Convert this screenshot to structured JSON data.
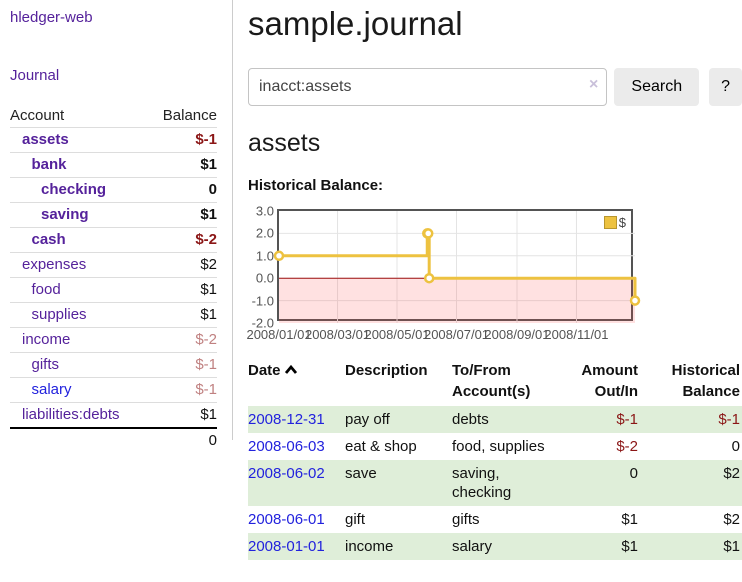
{
  "app": {
    "title": "hledger-web",
    "nav_journal": "Journal"
  },
  "header": {
    "title": "sample.journal"
  },
  "search": {
    "value": "inacct:assets",
    "clear_icon": "×",
    "button": "Search",
    "help_button": "?"
  },
  "account_page": {
    "heading": "assets",
    "chart_label": "Historical Balance:"
  },
  "colors": {
    "link_purple": "#55229B",
    "link_blue": "#2222DD",
    "negative_dark": "#8B1616",
    "negative_soft": "#C08181",
    "row_green": "#DFEED9",
    "chart_line": "#EDC240",
    "zero_line": "#A01212",
    "chart_border": "#545454"
  },
  "sidebar": {
    "table": {
      "col_account": "Account",
      "col_balance": "Balance",
      "rows": [
        {
          "name": "assets",
          "indent": 1,
          "bold": true,
          "balance": "$-1",
          "tone": "neg"
        },
        {
          "name": "bank",
          "indent": 2,
          "bold": true,
          "balance": "$1",
          "tone": ""
        },
        {
          "name": "checking",
          "indent": 3,
          "bold": true,
          "balance": "0",
          "tone": ""
        },
        {
          "name": "saving",
          "indent": 3,
          "bold": true,
          "balance": "$1",
          "tone": ""
        },
        {
          "name": "cash",
          "indent": 2,
          "bold": true,
          "balance": "$-2",
          "tone": "neg"
        },
        {
          "name": "expenses",
          "indent": 1,
          "bold": false,
          "balance": "$2",
          "tone": ""
        },
        {
          "name": "food",
          "indent": 2,
          "bold": false,
          "balance": "$1",
          "tone": ""
        },
        {
          "name": "supplies",
          "indent": 2,
          "bold": false,
          "balance": "$1",
          "tone": ""
        },
        {
          "name": "income",
          "indent": 1,
          "bold": false,
          "balance": "$-2",
          "tone": "negsoft"
        },
        {
          "name": "gifts",
          "indent": 2,
          "bold": false,
          "balance": "$-1",
          "tone": "negsoft"
        },
        {
          "name": "salary",
          "indent": 2,
          "bold": false,
          "balance": "$-1",
          "tone": "negsoft",
          "link_tone": "blue"
        },
        {
          "name": "liabilities:debts",
          "indent": 1,
          "bold": false,
          "balance": "$1",
          "tone": ""
        }
      ],
      "total": "0"
    }
  },
  "chart_data": {
    "type": "line",
    "style": "step",
    "title": "Historical Balance",
    "legend": [
      {
        "label": "$",
        "color": "#EDC240"
      }
    ],
    "legend_position": "top-right",
    "grid": true,
    "xlim": [
      "2008-01-01",
      "2008-12-31"
    ],
    "ylim": [
      -2,
      3
    ],
    "x_ticks": [
      "2008/01/01",
      "2008/03/01",
      "2008/05/01",
      "2008/07/01",
      "2008/09/01",
      "2008/11/01"
    ],
    "y_ticks": [
      3.0,
      2.0,
      1.0,
      0.0,
      -1.0,
      -2.0
    ],
    "series": [
      {
        "name": "$",
        "color": "#EDC240",
        "points": [
          {
            "x": "2008-01-01",
            "y": 1
          },
          {
            "x": "2008-06-01",
            "y": 2
          },
          {
            "x": "2008-06-02",
            "y": 2
          },
          {
            "x": "2008-06-03",
            "y": 0
          },
          {
            "x": "2008-12-31",
            "y": -1
          }
        ]
      }
    ],
    "negative_region": {
      "below": 0,
      "color": "rgba(255,70,70,0.16)"
    },
    "zero_line_color": "#A01212"
  },
  "register": {
    "columns": [
      {
        "line1": "Date",
        "line2": "",
        "sort": "asc"
      },
      {
        "line1": "Description",
        "line2": ""
      },
      {
        "line1": "To/From",
        "line2": "Account(s)"
      },
      {
        "line1": "Amount",
        "line2": "Out/In"
      },
      {
        "line1": "Historical",
        "line2": "Balance"
      }
    ],
    "rows": [
      {
        "date": "2008-12-31",
        "description": "pay off",
        "accounts": "debts",
        "amount": "$-1",
        "amount_tone": "neg",
        "balance": "$-1",
        "balance_tone": "neg",
        "shaded": true
      },
      {
        "date": "2008-06-03",
        "description": "eat & shop",
        "accounts": "food, supplies",
        "amount": "$-2",
        "amount_tone": "neg",
        "balance": "0",
        "balance_tone": "",
        "shaded": false
      },
      {
        "date": "2008-06-02",
        "description": "save",
        "accounts": "saving, checking",
        "amount": "0",
        "amount_tone": "",
        "balance": "$2",
        "balance_tone": "",
        "shaded": true
      },
      {
        "date": "2008-06-01",
        "description": "gift",
        "accounts": "gifts",
        "amount": "$1",
        "amount_tone": "",
        "balance": "$2",
        "balance_tone": "",
        "shaded": false
      },
      {
        "date": "2008-01-01",
        "description": "income",
        "accounts": "salary",
        "amount": "$1",
        "amount_tone": "",
        "balance": "$1",
        "balance_tone": "",
        "shaded": true
      }
    ]
  }
}
